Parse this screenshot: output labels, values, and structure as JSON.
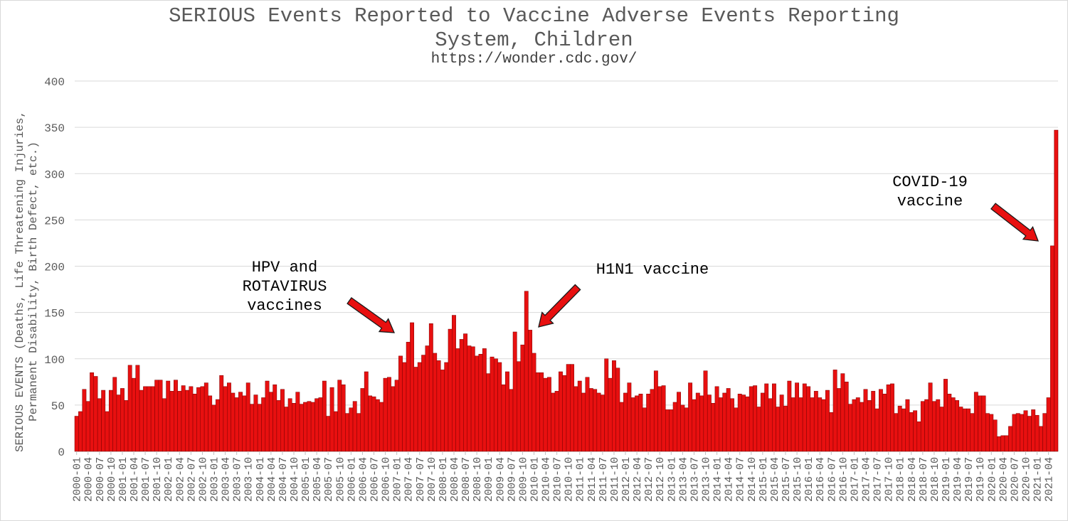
{
  "chart_data": {
    "type": "bar",
    "title": "SERIOUS Events Reported to Vaccine Adverse Events Reporting",
    "title_line2": "System, Children",
    "subtitle": "https://wonder.cdc.gov/",
    "ylabel_line1": "SERIOUS EVENTS (Deaths, Life Threatening Injuries,",
    "ylabel_line2": "Permanent Disability, Birth Defect, etc.)",
    "xlabel": "",
    "ylim": [
      0,
      400
    ],
    "yticks": [
      0,
      50,
      100,
      150,
      200,
      250,
      300,
      350,
      400
    ],
    "grid": true,
    "legend": "none",
    "bar_color": "#e81010",
    "bar_edge_color": "#7a0000",
    "start_year": 2000,
    "start_month": 1,
    "tick_every_months": 3,
    "values": [
      38,
      43,
      67,
      54,
      85,
      81,
      57,
      66,
      43,
      66,
      80,
      61,
      68,
      55,
      93,
      79,
      93,
      66,
      70,
      70,
      70,
      77,
      77,
      57,
      76,
      65,
      77,
      65,
      71,
      66,
      70,
      62,
      69,
      70,
      74,
      60,
      50,
      56,
      82,
      70,
      74,
      63,
      58,
      64,
      60,
      74,
      51,
      61,
      51,
      58,
      76,
      64,
      72,
      55,
      67,
      48,
      57,
      52,
      64,
      51,
      53,
      54,
      53,
      57,
      58,
      76,
      38,
      69,
      43,
      77,
      72,
      41,
      47,
      54,
      41,
      68,
      86,
      60,
      59,
      56,
      53,
      79,
      80,
      70,
      77,
      103,
      96,
      118,
      139,
      91,
      96,
      104,
      114,
      138,
      106,
      98,
      88,
      96,
      132,
      147,
      111,
      121,
      127,
      114,
      113,
      103,
      105,
      111,
      84,
      102,
      100,
      96,
      72,
      86,
      67,
      129,
      97,
      115,
      173,
      131,
      106,
      85,
      85,
      79,
      80,
      63,
      65,
      86,
      82,
      94,
      94,
      70,
      76,
      63,
      80,
      68,
      67,
      63,
      61,
      100,
      79,
      98,
      90,
      53,
      63,
      74,
      58,
      60,
      62,
      47,
      62,
      67,
      87,
      70,
      71,
      45,
      45,
      53,
      64,
      50,
      47,
      74,
      56,
      63,
      60,
      87,
      61,
      52,
      70,
      58,
      63,
      68,
      57,
      47,
      62,
      61,
      59,
      70,
      71,
      48,
      63,
      73,
      57,
      73,
      48,
      61,
      49,
      76,
      58,
      74,
      58,
      73,
      70,
      58,
      65,
      58,
      56,
      66,
      42,
      88,
      68,
      84,
      75,
      51,
      56,
      58,
      53,
      67,
      55,
      65,
      46,
      67,
      62,
      72,
      73,
      41,
      49,
      46,
      56,
      42,
      44,
      32,
      54,
      56,
      74,
      54,
      56,
      48,
      78,
      62,
      58,
      55,
      48,
      46,
      46,
      41,
      64,
      60,
      60,
      41,
      40,
      34,
      16,
      17,
      17,
      27,
      40,
      41,
      40,
      44,
      38,
      45,
      39,
      27,
      41,
      58,
      222,
      347
    ],
    "x_tick_labels": [
      "2000-01",
      "2000-04",
      "2000-07",
      "2000-10",
      "2001-01",
      "2001-04",
      "2001-07",
      "2001-10",
      "2002-01",
      "2002-04",
      "2002-07",
      "2002-10",
      "2003-01",
      "2003-04",
      "2003-07",
      "2003-10",
      "2004-01",
      "2004-04",
      "2004-07",
      "2004-10",
      "2005-01",
      "2005-04",
      "2005-07",
      "2005-10",
      "2006-01",
      "2006-04",
      "2006-07",
      "2006-10",
      "2007-01",
      "2007-04",
      "2007-07",
      "2007-10",
      "2008-01",
      "2008-04",
      "2008-07",
      "2008-10",
      "2009-01",
      "2009-04",
      "2009-07",
      "2009-10",
      "2010-01",
      "2010-04",
      "2010-07",
      "2010-10",
      "2011-01",
      "2011-04",
      "2011-07",
      "2011-10",
      "2012-01",
      "2012-04",
      "2012-07",
      "2012-10",
      "2013-01",
      "2013-04",
      "2013-07",
      "2013-10",
      "2014-01",
      "2014-04",
      "2014-07",
      "2014-10",
      "2015-01",
      "2015-04",
      "2015-07",
      "2015-10",
      "2016-01",
      "2016-04",
      "2016-07",
      "2016-10",
      "2017-01",
      "2017-04",
      "2017-07",
      "2017-10",
      "2018-01",
      "2018-04",
      "2018-07",
      "2018-10",
      "2019-01",
      "2019-04",
      "2019-07",
      "2019-10",
      "2020-01",
      "2020-04",
      "2020-07",
      "2020-10",
      "2021-01",
      "2021-04"
    ],
    "annotations": [
      {
        "lines": [
          "HPV and",
          "ROTAVIRUS",
          "vaccines"
        ]
      },
      {
        "lines": [
          "H1N1 vaccine"
        ]
      },
      {
        "lines": [
          "COVID-19",
          "vaccine"
        ]
      }
    ],
    "arrow_color": "#e81010"
  }
}
